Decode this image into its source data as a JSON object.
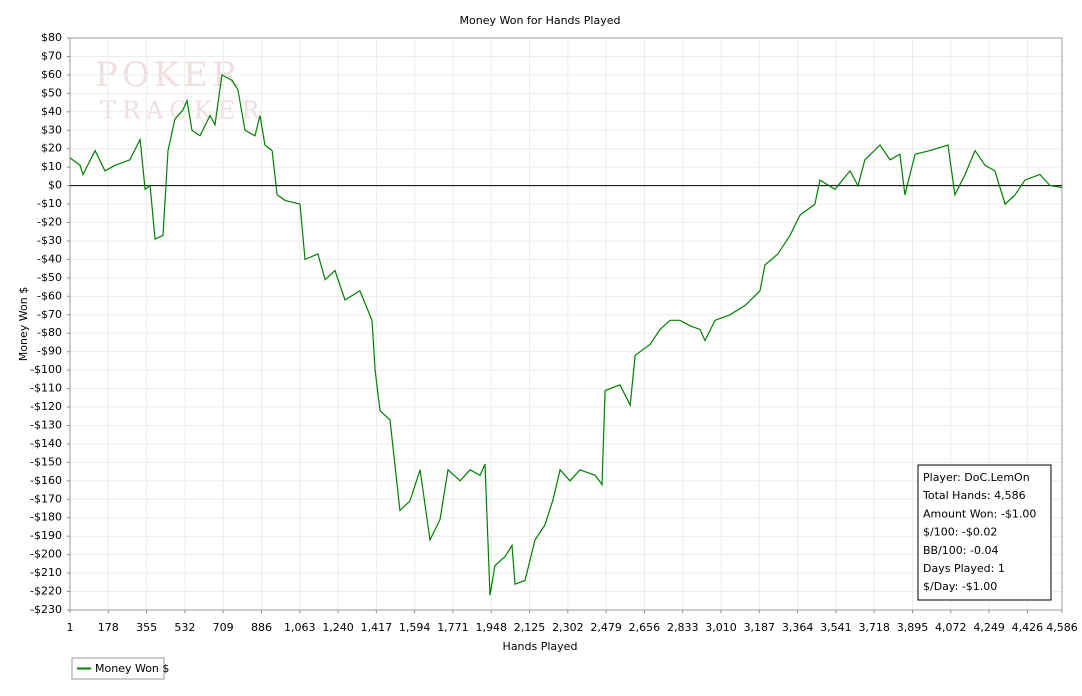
{
  "chart_data": {
    "type": "line",
    "title": "Money Won for Hands Played",
    "x_label": "Hands Played",
    "y_label": "Money Won $",
    "watermark": [
      "POKER",
      "TRACKER"
    ],
    "grid": true,
    "legend": "bottom-left",
    "zero_line": true,
    "xlim": [
      1,
      4586
    ],
    "ylim": [
      -230,
      80
    ],
    "xticks": [
      1,
      178,
      355,
      532,
      709,
      886,
      {
        "value": 1063,
        "label": "1,063"
      },
      {
        "value": 1240,
        "label": "1,240"
      },
      {
        "value": 1417,
        "label": "1,417"
      },
      {
        "value": 1594,
        "label": "1,594"
      },
      {
        "value": 1771,
        "label": "1,771"
      },
      {
        "value": 1948,
        "label": "1,948"
      },
      {
        "value": 2125,
        "label": "2,125"
      },
      {
        "value": 2302,
        "label": "2,302"
      },
      {
        "value": 2479,
        "label": "2,479"
      },
      {
        "value": 2656,
        "label": "2,656"
      },
      {
        "value": 2833,
        "label": "2,833"
      },
      {
        "value": 3010,
        "label": "3,010"
      },
      {
        "value": 3187,
        "label": "3,187"
      },
      {
        "value": 3364,
        "label": "3,364"
      },
      {
        "value": 3541,
        "label": "3,541"
      },
      {
        "value": 3718,
        "label": "3,718"
      },
      {
        "value": 3895,
        "label": "3,895"
      },
      {
        "value": 4072,
        "label": "4,072"
      },
      {
        "value": 4249,
        "label": "4,249"
      },
      {
        "value": 4426,
        "label": "4,426"
      },
      {
        "value": 4586,
        "label": "4,586"
      }
    ],
    "yticks": [
      {
        "value": 80,
        "label": "$80"
      },
      {
        "value": 70,
        "label": "$70"
      },
      {
        "value": 60,
        "label": "$60"
      },
      {
        "value": 50,
        "label": "$50"
      },
      {
        "value": 40,
        "label": "$40"
      },
      {
        "value": 30,
        "label": "$30"
      },
      {
        "value": 20,
        "label": "$20"
      },
      {
        "value": 10,
        "label": "$10"
      },
      {
        "value": 0,
        "label": "$0"
      },
      {
        "value": -10,
        "label": "-$10"
      },
      {
        "value": -20,
        "label": "-$20"
      },
      {
        "value": -30,
        "label": "-$30"
      },
      {
        "value": -40,
        "label": "-$40"
      },
      {
        "value": -50,
        "label": "-$50"
      },
      {
        "value": -60,
        "label": "-$60"
      },
      {
        "value": -70,
        "label": "-$70"
      },
      {
        "value": -80,
        "label": "-$80"
      },
      {
        "value": -90,
        "label": "-$90"
      },
      {
        "value": -100,
        "label": "-$100"
      },
      {
        "value": -110,
        "label": "-$110"
      },
      {
        "value": -120,
        "label": "-$120"
      },
      {
        "value": -130,
        "label": "-$130"
      },
      {
        "value": -140,
        "label": "-$140"
      },
      {
        "value": -150,
        "label": "-$150"
      },
      {
        "value": -160,
        "label": "-$160"
      },
      {
        "value": -170,
        "label": "-$170"
      },
      {
        "value": -180,
        "label": "-$180"
      },
      {
        "value": -190,
        "label": "-$190"
      },
      {
        "value": -200,
        "label": "-$200"
      },
      {
        "value": -210,
        "label": "-$210"
      },
      {
        "value": -220,
        "label": "-$220"
      },
      {
        "value": -230,
        "label": "-$230"
      }
    ],
    "x": [
      1,
      47,
      61,
      117,
      163,
      209,
      278,
      325,
      348,
      371,
      394,
      431,
      454,
      486,
      523,
      542,
      565,
      602,
      648,
      671,
      703,
      750,
      777,
      810,
      856,
      879,
      902,
      935,
      958,
      995,
      1064,
      1087,
      1147,
      1180,
      1226,
      1272,
      1341,
      1397,
      1411,
      1434,
      1480,
      1526,
      1572,
      1619,
      1665,
      1711,
      1748,
      1804,
      1850,
      1896,
      1919,
      1942,
      1965,
      2012,
      2044,
      2058,
      2104,
      2150,
      2196,
      2234,
      2266,
      2312,
      2358,
      2428,
      2460,
      2474,
      2543,
      2590,
      2613,
      2682,
      2728,
      2774,
      2820,
      2867,
      2913,
      2936,
      2982,
      3051,
      3121,
      3190,
      3213,
      3273,
      3329,
      3375,
      3444,
      3467,
      3537,
      3606,
      3643,
      3675,
      3745,
      3791,
      3837,
      3860,
      3907,
      3976,
      4059,
      4091,
      4138,
      4184,
      4230,
      4276,
      4323,
      4369,
      4415,
      4484,
      4531,
      4586
    ],
    "series": [
      {
        "name": "Money Won $",
        "color": "#008000",
        "values": [
          15,
          11,
          6,
          19,
          8,
          11,
          14,
          25,
          -2,
          0,
          -29,
          -27,
          19,
          36,
          41,
          46,
          30,
          27,
          38,
          33,
          60,
          57,
          52,
          30,
          27,
          38,
          22,
          19,
          -5,
          -8,
          -10,
          -40,
          -37,
          -51,
          -46,
          -62,
          -57,
          -73,
          -100,
          -122,
          -127,
          -176,
          -171,
          -154,
          -192,
          -181,
          -154,
          -160,
          -154,
          -157,
          -151,
          -222,
          -206,
          -201,
          -195,
          -216,
          -214,
          -192,
          -184,
          -170,
          -154,
          -160,
          -154,
          -157,
          -162,
          -111,
          -108,
          -119,
          -92,
          -86,
          -78,
          -73,
          -73,
          -76,
          -78,
          -84,
          -73,
          -70,
          -65,
          -57,
          -43,
          -37,
          -27,
          -16,
          -10,
          3,
          -2,
          8,
          0,
          14,
          22,
          14,
          17,
          -5,
          17,
          19,
          22,
          -5,
          6,
          19,
          11,
          8,
          -10,
          -5,
          3,
          6,
          0,
          -1
        ]
      }
    ],
    "info_box": [
      "Player: DoC.LemOn",
      "Total Hands: 4,586",
      "Amount Won: -$1.00",
      "$/100: -$0.02",
      "BB/100: -0.04",
      "Days Played: 1",
      "$/Day: -$1.00"
    ]
  }
}
